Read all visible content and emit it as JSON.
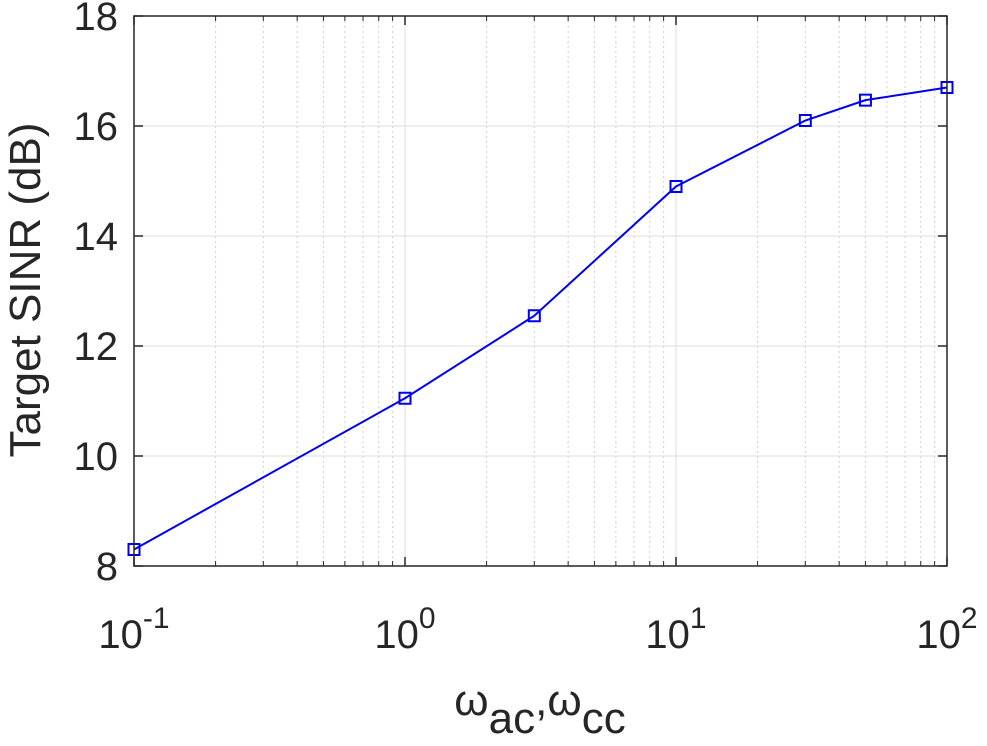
{
  "chart_data": {
    "type": "line",
    "title": "",
    "xlabel": "ω_ac,ω_cc",
    "xlabel_parts": {
      "sym1": "ω",
      "sub1": "ac",
      "sep": ",",
      "sym2": "ω",
      "sub2": "cc"
    },
    "ylabel": "Target SINR (dB)",
    "xscale": "log",
    "xlim": [
      0.1,
      100
    ],
    "ylim": [
      8,
      18
    ],
    "grid": true,
    "x_ticks": [
      {
        "value": 0.1,
        "base": "10",
        "exp": "-1"
      },
      {
        "value": 1,
        "base": "10",
        "exp": "0"
      },
      {
        "value": 10,
        "base": "10",
        "exp": "1"
      },
      {
        "value": 100,
        "base": "10",
        "exp": "2"
      }
    ],
    "y_ticks": [
      {
        "value": 8,
        "label": "8"
      },
      {
        "value": 10,
        "label": "10"
      },
      {
        "value": 12,
        "label": "12"
      },
      {
        "value": 14,
        "label": "14"
      },
      {
        "value": 16,
        "label": "16"
      },
      {
        "value": 18,
        "label": "18"
      }
    ],
    "series": [
      {
        "color": "#0000ee",
        "marker": "square",
        "x": [
          0.1,
          1,
          3,
          10,
          30,
          50,
          100
        ],
        "y": [
          8.3,
          11.05,
          12.55,
          14.9,
          16.1,
          16.47,
          16.7
        ]
      }
    ]
  }
}
